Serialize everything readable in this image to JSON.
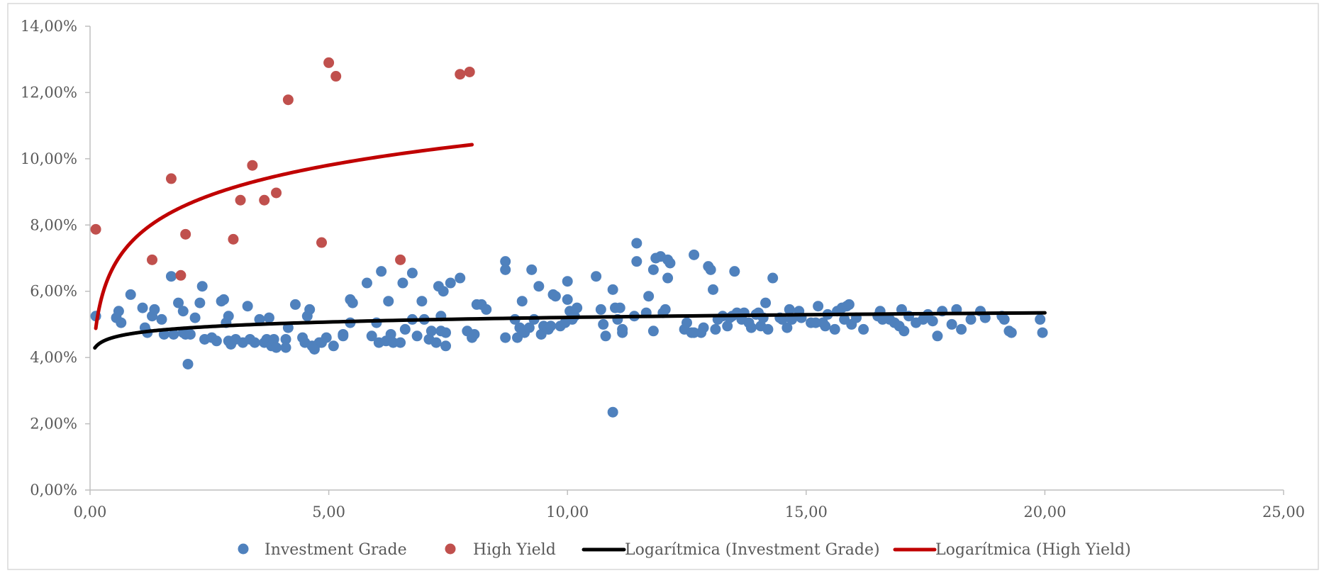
{
  "chart_data": {
    "type": "scatter",
    "title": "",
    "xlabel": "",
    "ylabel": "",
    "xlim": [
      0,
      25
    ],
    "ylim": [
      0,
      0.14
    ],
    "x_ticks": [
      0,
      5,
      10,
      15,
      20,
      25
    ],
    "x_tick_labels": [
      "0,00",
      "5,00",
      "10,00",
      "15,00",
      "20,00",
      "25,00"
    ],
    "y_ticks": [
      0,
      0.02,
      0.04,
      0.06,
      0.08,
      0.1,
      0.12,
      0.14
    ],
    "y_tick_labels": [
      "0,00%",
      "2,00%",
      "4,00%",
      "6,00%",
      "8,00%",
      "10,00%",
      "12,00%",
      "14,00%"
    ],
    "grid": false,
    "legend_position": "bottom",
    "series": [
      {
        "name": "Investment Grade",
        "kind": "scatter",
        "color": "#4F81BD",
        "points": [
          [
            0.12,
            0.0525
          ],
          [
            0.55,
            0.052
          ],
          [
            0.6,
            0.054
          ],
          [
            0.65,
            0.0505
          ],
          [
            0.85,
            0.059
          ],
          [
            1.1,
            0.055
          ],
          [
            1.15,
            0.049
          ],
          [
            1.2,
            0.0475
          ],
          [
            1.3,
            0.0525
          ],
          [
            1.35,
            0.0545
          ],
          [
            1.5,
            0.0515
          ],
          [
            1.55,
            0.047
          ],
          [
            1.7,
            0.0645
          ],
          [
            1.75,
            0.047
          ],
          [
            1.85,
            0.0565
          ],
          [
            1.95,
            0.054
          ],
          [
            1.95,
            0.0475
          ],
          [
            2.0,
            0.047
          ],
          [
            2.05,
            0.038
          ],
          [
            2.1,
            0.047
          ],
          [
            2.2,
            0.052
          ],
          [
            2.3,
            0.0565
          ],
          [
            2.35,
            0.0615
          ],
          [
            2.4,
            0.0455
          ],
          [
            2.55,
            0.046
          ],
          [
            2.65,
            0.045
          ],
          [
            2.75,
            0.057
          ],
          [
            2.8,
            0.0575
          ],
          [
            2.85,
            0.0505
          ],
          [
            2.9,
            0.0525
          ],
          [
            2.9,
            0.045
          ],
          [
            2.95,
            0.044
          ],
          [
            3.05,
            0.0455
          ],
          [
            3.2,
            0.0445
          ],
          [
            3.3,
            0.0555
          ],
          [
            3.35,
            0.0455
          ],
          [
            3.45,
            0.0445
          ],
          [
            3.55,
            0.0515
          ],
          [
            3.65,
            0.0445
          ],
          [
            3.7,
            0.0455
          ],
          [
            3.75,
            0.052
          ],
          [
            3.8,
            0.0435
          ],
          [
            3.85,
            0.0455
          ],
          [
            3.9,
            0.043
          ],
          [
            4.1,
            0.0455
          ],
          [
            4.1,
            0.043
          ],
          [
            4.15,
            0.049
          ],
          [
            4.3,
            0.056
          ],
          [
            4.45,
            0.046
          ],
          [
            4.5,
            0.0445
          ],
          [
            4.55,
            0.0525
          ],
          [
            4.6,
            0.0545
          ],
          [
            4.65,
            0.0435
          ],
          [
            4.7,
            0.0425
          ],
          [
            4.8,
            0.0445
          ],
          [
            4.85,
            0.0445
          ],
          [
            4.95,
            0.046
          ],
          [
            5.1,
            0.0435
          ],
          [
            5.3,
            0.047
          ],
          [
            5.3,
            0.0465
          ],
          [
            5.45,
            0.0505
          ],
          [
            5.45,
            0.0575
          ],
          [
            5.5,
            0.0565
          ],
          [
            5.8,
            0.0625
          ],
          [
            5.9,
            0.0465
          ],
          [
            6.0,
            0.0505
          ],
          [
            6.05,
            0.0445
          ],
          [
            6.1,
            0.066
          ],
          [
            6.2,
            0.045
          ],
          [
            6.25,
            0.057
          ],
          [
            6.3,
            0.047
          ],
          [
            6.35,
            0.0445
          ],
          [
            6.5,
            0.0445
          ],
          [
            6.55,
            0.0625
          ],
          [
            6.6,
            0.0485
          ],
          [
            6.75,
            0.0655
          ],
          [
            6.75,
            0.0515
          ],
          [
            6.85,
            0.0465
          ],
          [
            6.95,
            0.057
          ],
          [
            7.0,
            0.0515
          ],
          [
            7.1,
            0.0455
          ],
          [
            7.15,
            0.048
          ],
          [
            7.25,
            0.0445
          ],
          [
            7.3,
            0.0615
          ],
          [
            7.35,
            0.0525
          ],
          [
            7.35,
            0.048
          ],
          [
            7.4,
            0.06
          ],
          [
            7.45,
            0.0435
          ],
          [
            7.45,
            0.0475
          ],
          [
            7.55,
            0.0625
          ],
          [
            7.75,
            0.064
          ],
          [
            7.9,
            0.048
          ],
          [
            8.0,
            0.046
          ],
          [
            8.05,
            0.047
          ],
          [
            8.1,
            0.056
          ],
          [
            8.2,
            0.056
          ],
          [
            8.3,
            0.0545
          ],
          [
            8.7,
            0.069
          ],
          [
            8.7,
            0.0665
          ],
          [
            8.7,
            0.046
          ],
          [
            8.9,
            0.0515
          ],
          [
            8.95,
            0.046
          ],
          [
            9.0,
            0.049
          ],
          [
            9.05,
            0.057
          ],
          [
            9.1,
            0.0475
          ],
          [
            9.2,
            0.049
          ],
          [
            9.25,
            0.0665
          ],
          [
            9.3,
            0.0515
          ],
          [
            9.4,
            0.0615
          ],
          [
            9.45,
            0.047
          ],
          [
            9.5,
            0.0495
          ],
          [
            9.6,
            0.0485
          ],
          [
            9.65,
            0.0495
          ],
          [
            9.7,
            0.059
          ],
          [
            9.75,
            0.0585
          ],
          [
            9.85,
            0.0495
          ],
          [
            9.95,
            0.0505
          ],
          [
            10.0,
            0.063
          ],
          [
            10.0,
            0.0575
          ],
          [
            10.05,
            0.054
          ],
          [
            10.1,
            0.0515
          ],
          [
            10.15,
            0.0525
          ],
          [
            10.2,
            0.055
          ],
          [
            10.6,
            0.0645
          ],
          [
            10.7,
            0.0545
          ],
          [
            10.75,
            0.05
          ],
          [
            10.8,
            0.0465
          ],
          [
            10.95,
            0.0235
          ],
          [
            10.95,
            0.0605
          ],
          [
            11.0,
            0.055
          ],
          [
            11.05,
            0.0515
          ],
          [
            11.1,
            0.055
          ],
          [
            11.15,
            0.0475
          ],
          [
            11.15,
            0.0485
          ],
          [
            11.4,
            0.0525
          ],
          [
            11.45,
            0.069
          ],
          [
            11.45,
            0.0745
          ],
          [
            11.65,
            0.0535
          ],
          [
            11.7,
            0.0585
          ],
          [
            11.8,
            0.0665
          ],
          [
            11.8,
            0.048
          ],
          [
            11.85,
            0.07
          ],
          [
            11.95,
            0.0705
          ],
          [
            12.0,
            0.0535
          ],
          [
            12.05,
            0.0545
          ],
          [
            12.1,
            0.064
          ],
          [
            12.1,
            0.0695
          ],
          [
            12.15,
            0.0685
          ],
          [
            12.45,
            0.0485
          ],
          [
            12.5,
            0.0505
          ],
          [
            12.6,
            0.0475
          ],
          [
            12.65,
            0.0475
          ],
          [
            12.65,
            0.071
          ],
          [
            12.8,
            0.0475
          ],
          [
            12.85,
            0.049
          ],
          [
            12.95,
            0.0675
          ],
          [
            13.0,
            0.0665
          ],
          [
            13.05,
            0.0605
          ],
          [
            13.1,
            0.0485
          ],
          [
            13.15,
            0.0515
          ],
          [
            13.25,
            0.0525
          ],
          [
            13.35,
            0.0495
          ],
          [
            13.4,
            0.052
          ],
          [
            13.45,
            0.0525
          ],
          [
            13.5,
            0.066
          ],
          [
            13.55,
            0.0535
          ],
          [
            13.65,
            0.0515
          ],
          [
            13.7,
            0.0535
          ],
          [
            13.8,
            0.0505
          ],
          [
            13.85,
            0.049
          ],
          [
            13.95,
            0.053
          ],
          [
            14.0,
            0.0535
          ],
          [
            14.05,
            0.0495
          ],
          [
            14.1,
            0.052
          ],
          [
            14.15,
            0.0565
          ],
          [
            14.2,
            0.0485
          ],
          [
            14.3,
            0.064
          ],
          [
            14.45,
            0.052
          ],
          [
            14.5,
            0.0515
          ],
          [
            14.6,
            0.049
          ],
          [
            14.65,
            0.0545
          ],
          [
            14.7,
            0.0515
          ],
          [
            14.85,
            0.054
          ],
          [
            14.9,
            0.052
          ],
          [
            15.1,
            0.0505
          ],
          [
            15.2,
            0.0505
          ],
          [
            15.25,
            0.0555
          ],
          [
            15.35,
            0.0505
          ],
          [
            15.4,
            0.0495
          ],
          [
            15.45,
            0.053
          ],
          [
            15.6,
            0.0485
          ],
          [
            15.65,
            0.054
          ],
          [
            15.75,
            0.055
          ],
          [
            15.8,
            0.0515
          ],
          [
            15.85,
            0.0555
          ],
          [
            15.9,
            0.056
          ],
          [
            15.95,
            0.05
          ],
          [
            16.05,
            0.052
          ],
          [
            16.2,
            0.0485
          ],
          [
            16.5,
            0.0525
          ],
          [
            16.55,
            0.054
          ],
          [
            16.6,
            0.0515
          ],
          [
            16.75,
            0.0515
          ],
          [
            16.85,
            0.0505
          ],
          [
            16.95,
            0.0495
          ],
          [
            17.0,
            0.0545
          ],
          [
            17.05,
            0.048
          ],
          [
            17.15,
            0.0525
          ],
          [
            17.3,
            0.0505
          ],
          [
            17.45,
            0.0515
          ],
          [
            17.55,
            0.053
          ],
          [
            17.65,
            0.051
          ],
          [
            17.75,
            0.0465
          ],
          [
            17.85,
            0.054
          ],
          [
            18.05,
            0.05
          ],
          [
            18.15,
            0.0545
          ],
          [
            18.25,
            0.0485
          ],
          [
            18.45,
            0.0515
          ],
          [
            18.65,
            0.054
          ],
          [
            18.75,
            0.052
          ],
          [
            19.1,
            0.0525
          ],
          [
            19.15,
            0.0515
          ],
          [
            19.25,
            0.048
          ],
          [
            19.3,
            0.0475
          ],
          [
            19.9,
            0.0515
          ],
          [
            19.95,
            0.0475
          ]
        ]
      },
      {
        "name": "High Yield",
        "kind": "scatter",
        "color": "#C0504D",
        "points": [
          [
            0.12,
            0.0787
          ],
          [
            1.3,
            0.0695
          ],
          [
            1.7,
            0.094
          ],
          [
            1.9,
            0.0648
          ],
          [
            2.0,
            0.0772
          ],
          [
            3.0,
            0.0757
          ],
          [
            3.15,
            0.0875
          ],
          [
            3.4,
            0.098
          ],
          [
            3.65,
            0.0875
          ],
          [
            3.9,
            0.0897
          ],
          [
            4.15,
            0.1178
          ],
          [
            4.85,
            0.0747
          ],
          [
            5.0,
            0.129
          ],
          [
            5.15,
            0.1249
          ],
          [
            6.5,
            0.0695
          ],
          [
            7.75,
            0.1255
          ],
          [
            7.95,
            0.1262
          ]
        ]
      },
      {
        "name": "Logarítmica (Investment Grade)",
        "kind": "trend",
        "color": "#000000",
        "fit": "logarithmic",
        "coefficients": {
          "a": 0.0475,
          "b": 0.002
        },
        "x_range": [
          0.1,
          20.0
        ]
      },
      {
        "name": "Logarítmica (High Yield)",
        "kind": "trend",
        "color": "#C00000",
        "fit": "logarithmic",
        "coefficients": {
          "a": 0.0768,
          "b": 0.0132
        },
        "x_range": [
          0.12,
          8.0
        ]
      }
    ]
  }
}
